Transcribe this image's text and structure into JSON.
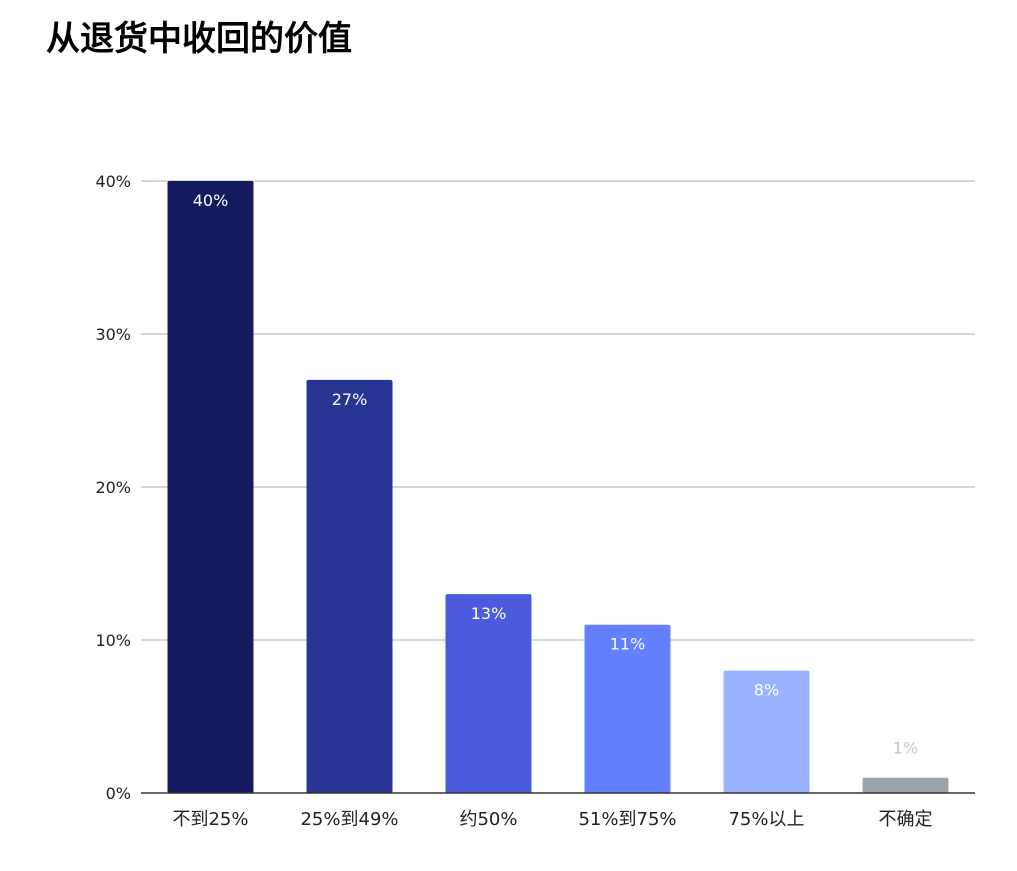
{
  "chart_data": {
    "type": "bar",
    "title": "从退货中收回的价值",
    "categories": [
      "不到25%",
      "25%到49%",
      "约50%",
      "51%到75%",
      "75%以上",
      "不确定"
    ],
    "values": [
      40,
      27,
      13,
      11,
      8,
      1
    ],
    "data_labels": [
      "40%",
      "27%",
      "13%",
      "11%",
      "8%",
      "1%"
    ],
    "bar_colors": [
      "#131A5E",
      "#283593",
      "#4A5BDC",
      "#6480FF",
      "#99B3FF",
      "#9EA4AA"
    ],
    "data_label_colors": [
      "#FFFFFF",
      "#FFFFFF",
      "#FFFFFF",
      "#FFFFFF",
      "#FFFFFF",
      "#C4C7CA"
    ],
    "y_ticks": [
      0,
      10,
      20,
      30,
      40
    ],
    "y_tick_labels": [
      "0%",
      "10%",
      "20%",
      "30%",
      "40%"
    ],
    "ylim": [
      0,
      40
    ],
    "xlabel": "",
    "ylabel": "",
    "grid": true,
    "legend": "none"
  }
}
